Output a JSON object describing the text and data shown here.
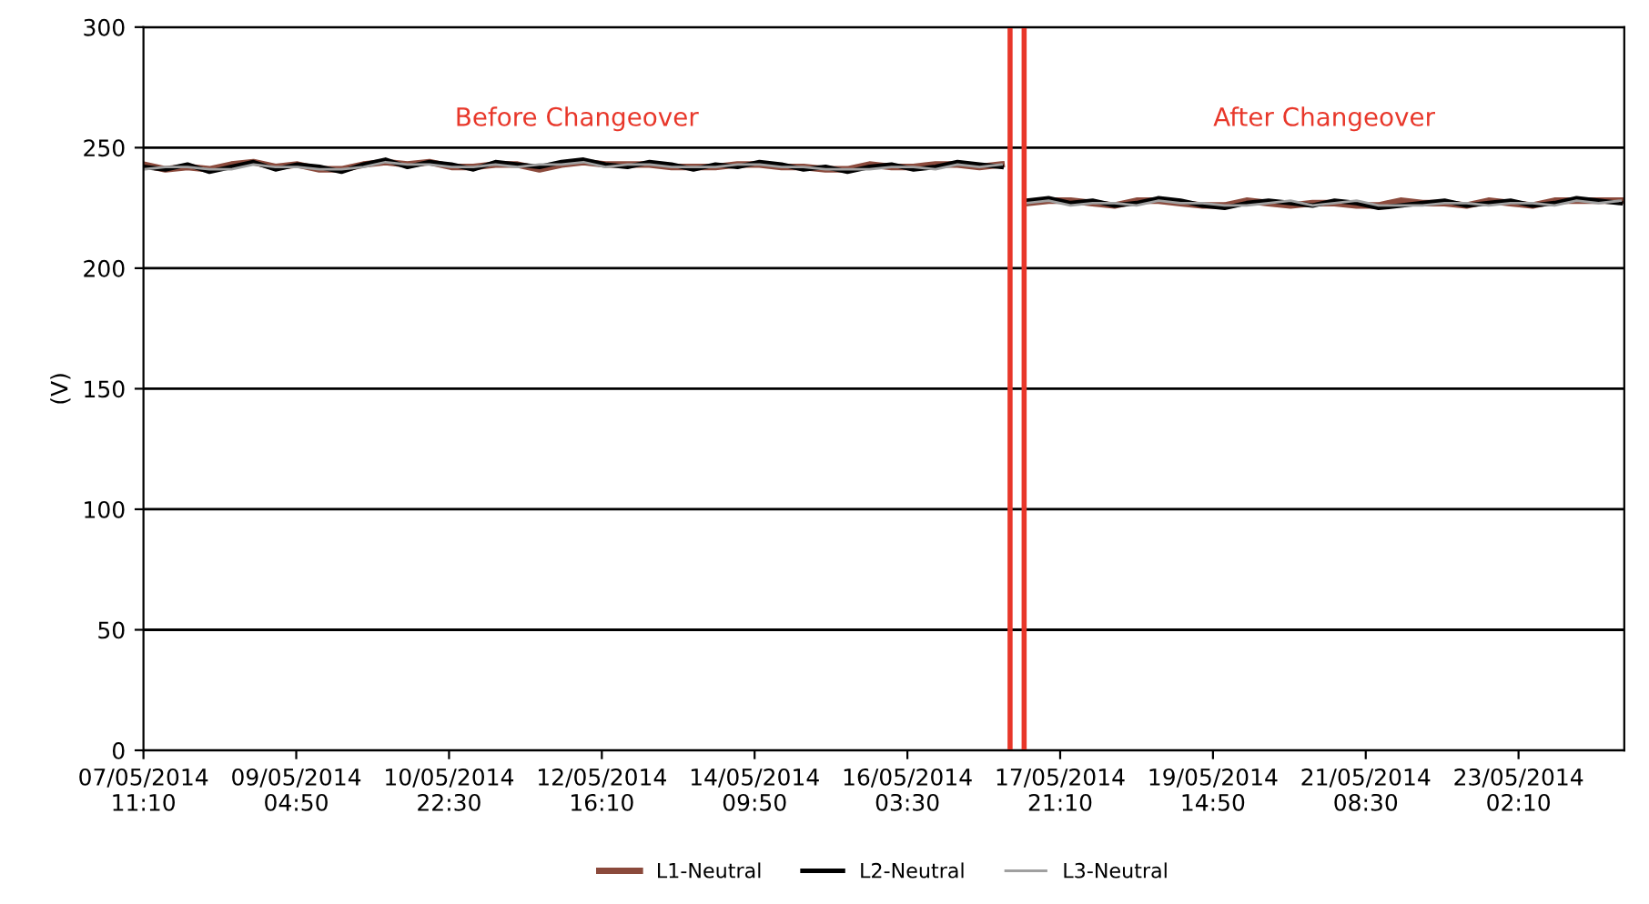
{
  "chart_data": {
    "type": "line",
    "ylabel": "(V)",
    "annotations": [
      "Before Changeover",
      "After Changeover"
    ],
    "x": [
      "2014-05-07T11:10",
      "2014-05-07T17:10",
      "2014-05-07T23:10",
      "2014-05-08T05:10",
      "2014-05-08T11:10",
      "2014-05-08T17:10",
      "2014-05-08T23:10",
      "2014-05-09T05:10",
      "2014-05-09T11:10",
      "2014-05-09T17:10",
      "2014-05-09T23:10",
      "2014-05-10T05:10",
      "2014-05-10T11:10",
      "2014-05-10T17:10",
      "2014-05-10T23:10",
      "2014-05-11T05:10",
      "2014-05-11T11:10",
      "2014-05-11T17:10",
      "2014-05-11T23:10",
      "2014-05-12T05:10",
      "2014-05-12T11:10",
      "2014-05-12T17:10",
      "2014-05-12T23:10",
      "2014-05-13T05:10",
      "2014-05-13T11:10",
      "2014-05-13T17:10",
      "2014-05-13T23:10",
      "2014-05-14T05:10",
      "2014-05-14T11:10",
      "2014-05-14T17:10",
      "2014-05-14T23:10",
      "2014-05-15T05:10",
      "2014-05-15T11:10",
      "2014-05-15T17:10",
      "2014-05-15T23:10",
      "2014-05-16T05:10",
      "2014-05-16T11:10",
      "2014-05-16T17:10",
      "2014-05-16T23:10",
      "2014-05-17T05:10",
      "2014-05-17T09:00",
      "2014-05-17T12:00",
      "2014-05-17T18:00",
      "2014-05-18T00:00",
      "2014-05-18T06:00",
      "2014-05-18T12:00",
      "2014-05-18T18:00",
      "2014-05-19T00:00",
      "2014-05-19T06:00",
      "2014-05-19T12:00",
      "2014-05-19T18:00",
      "2014-05-20T00:00",
      "2014-05-20T06:00",
      "2014-05-20T12:00",
      "2014-05-20T18:00",
      "2014-05-21T00:00",
      "2014-05-21T06:00",
      "2014-05-21T12:00",
      "2014-05-21T18:00",
      "2014-05-22T00:00",
      "2014-05-22T06:00",
      "2014-05-22T12:00",
      "2014-05-22T18:00",
      "2014-05-23T00:00",
      "2014-05-23T06:00",
      "2014-05-23T12:00",
      "2014-05-23T18:00",
      "2014-05-24T00:00",
      "2014-05-24T06:00"
    ],
    "series": [
      {
        "name": "L1-Neutral",
        "color": "#8b4a3c",
        "values": [
          243,
          241,
          242,
          241,
          243,
          244,
          242,
          243,
          241,
          241,
          243,
          244,
          243,
          244,
          242,
          242,
          243,
          243,
          241,
          243,
          244,
          243,
          243,
          243,
          242,
          242,
          242,
          243,
          243,
          242,
          242,
          241,
          241,
          243,
          242,
          242,
          243,
          243,
          242,
          243,
          null,
          227,
          228,
          228,
          227,
          226,
          228,
          228,
          227,
          226,
          226,
          228,
          227,
          226,
          227,
          227,
          226,
          226,
          228,
          227,
          227,
          226,
          228,
          227,
          226,
          228,
          228,
          228,
          228
        ]
      },
      {
        "name": "L2-Neutral",
        "color": "#000000",
        "values": [
          242,
          241,
          243,
          240,
          242,
          244,
          241,
          243,
          242,
          240,
          243,
          245,
          242,
          244,
          243,
          241,
          244,
          243,
          242,
          244,
          245,
          243,
          242,
          244,
          243,
          241,
          243,
          242,
          244,
          243,
          241,
          242,
          240,
          242,
          243,
          241,
          242,
          244,
          243,
          242,
          null,
          228,
          229,
          227,
          228,
          226,
          227,
          229,
          228,
          226,
          225,
          227,
          228,
          227,
          226,
          228,
          227,
          225,
          226,
          227,
          228,
          226,
          227,
          228,
          226,
          227,
          229,
          228,
          227
        ]
      },
      {
        "name": "L3-Neutral",
        "color": "#a0a0a0",
        "values": [
          241,
          242,
          242,
          241,
          241,
          243,
          242,
          242,
          241,
          241,
          242,
          244,
          243,
          243,
          242,
          242,
          243,
          242,
          243,
          243,
          244,
          242,
          243,
          243,
          242,
          242,
          242,
          243,
          243,
          242,
          242,
          241,
          241,
          241,
          242,
          242,
          241,
          243,
          242,
          243,
          null,
          227,
          228,
          226,
          227,
          227,
          226,
          228,
          227,
          227,
          226,
          226,
          227,
          228,
          226,
          227,
          228,
          226,
          226,
          226,
          227,
          227,
          226,
          227,
          227,
          226,
          228,
          227,
          228
        ]
      }
    ],
    "xlim": [
      "2014-05-07T11:10",
      "2014-05-24T07:00"
    ],
    "xticks": [
      {
        "value": "2014-05-07T11:10",
        "label": "07/05/2014\n11:10"
      },
      {
        "value": "2014-05-09T04:50",
        "label": "09/05/2014\n04:50"
      },
      {
        "value": "2014-05-10T22:30",
        "label": "10/05/2014\n22:30"
      },
      {
        "value": "2014-05-12T16:10",
        "label": "12/05/2014\n16:10"
      },
      {
        "value": "2014-05-14T09:50",
        "label": "14/05/2014\n09:50"
      },
      {
        "value": "2014-05-16T03:30",
        "label": "16/05/2014\n03:30"
      },
      {
        "value": "2014-05-17T21:10",
        "label": "17/05/2014\n21:10"
      },
      {
        "value": "2014-05-19T14:50",
        "label": "19/05/2014\n14:50"
      },
      {
        "value": "2014-05-21T08:30",
        "label": "21/05/2014\n08:30"
      },
      {
        "value": "2014-05-23T02:10",
        "label": "23/05/2014\n02:10"
      }
    ],
    "ylim": [
      0,
      300
    ],
    "yticks": [
      0,
      50,
      100,
      150,
      200,
      250,
      300
    ],
    "ref_lines": [
      {
        "axis": "x",
        "value": "2014-05-17T07:30",
        "color": "#e8372a"
      },
      {
        "axis": "x",
        "value": "2014-05-17T11:20",
        "color": "#e8372a"
      }
    ],
    "grid": "y",
    "legend": "bottom",
    "line_style": "solid",
    "marker": "none"
  }
}
